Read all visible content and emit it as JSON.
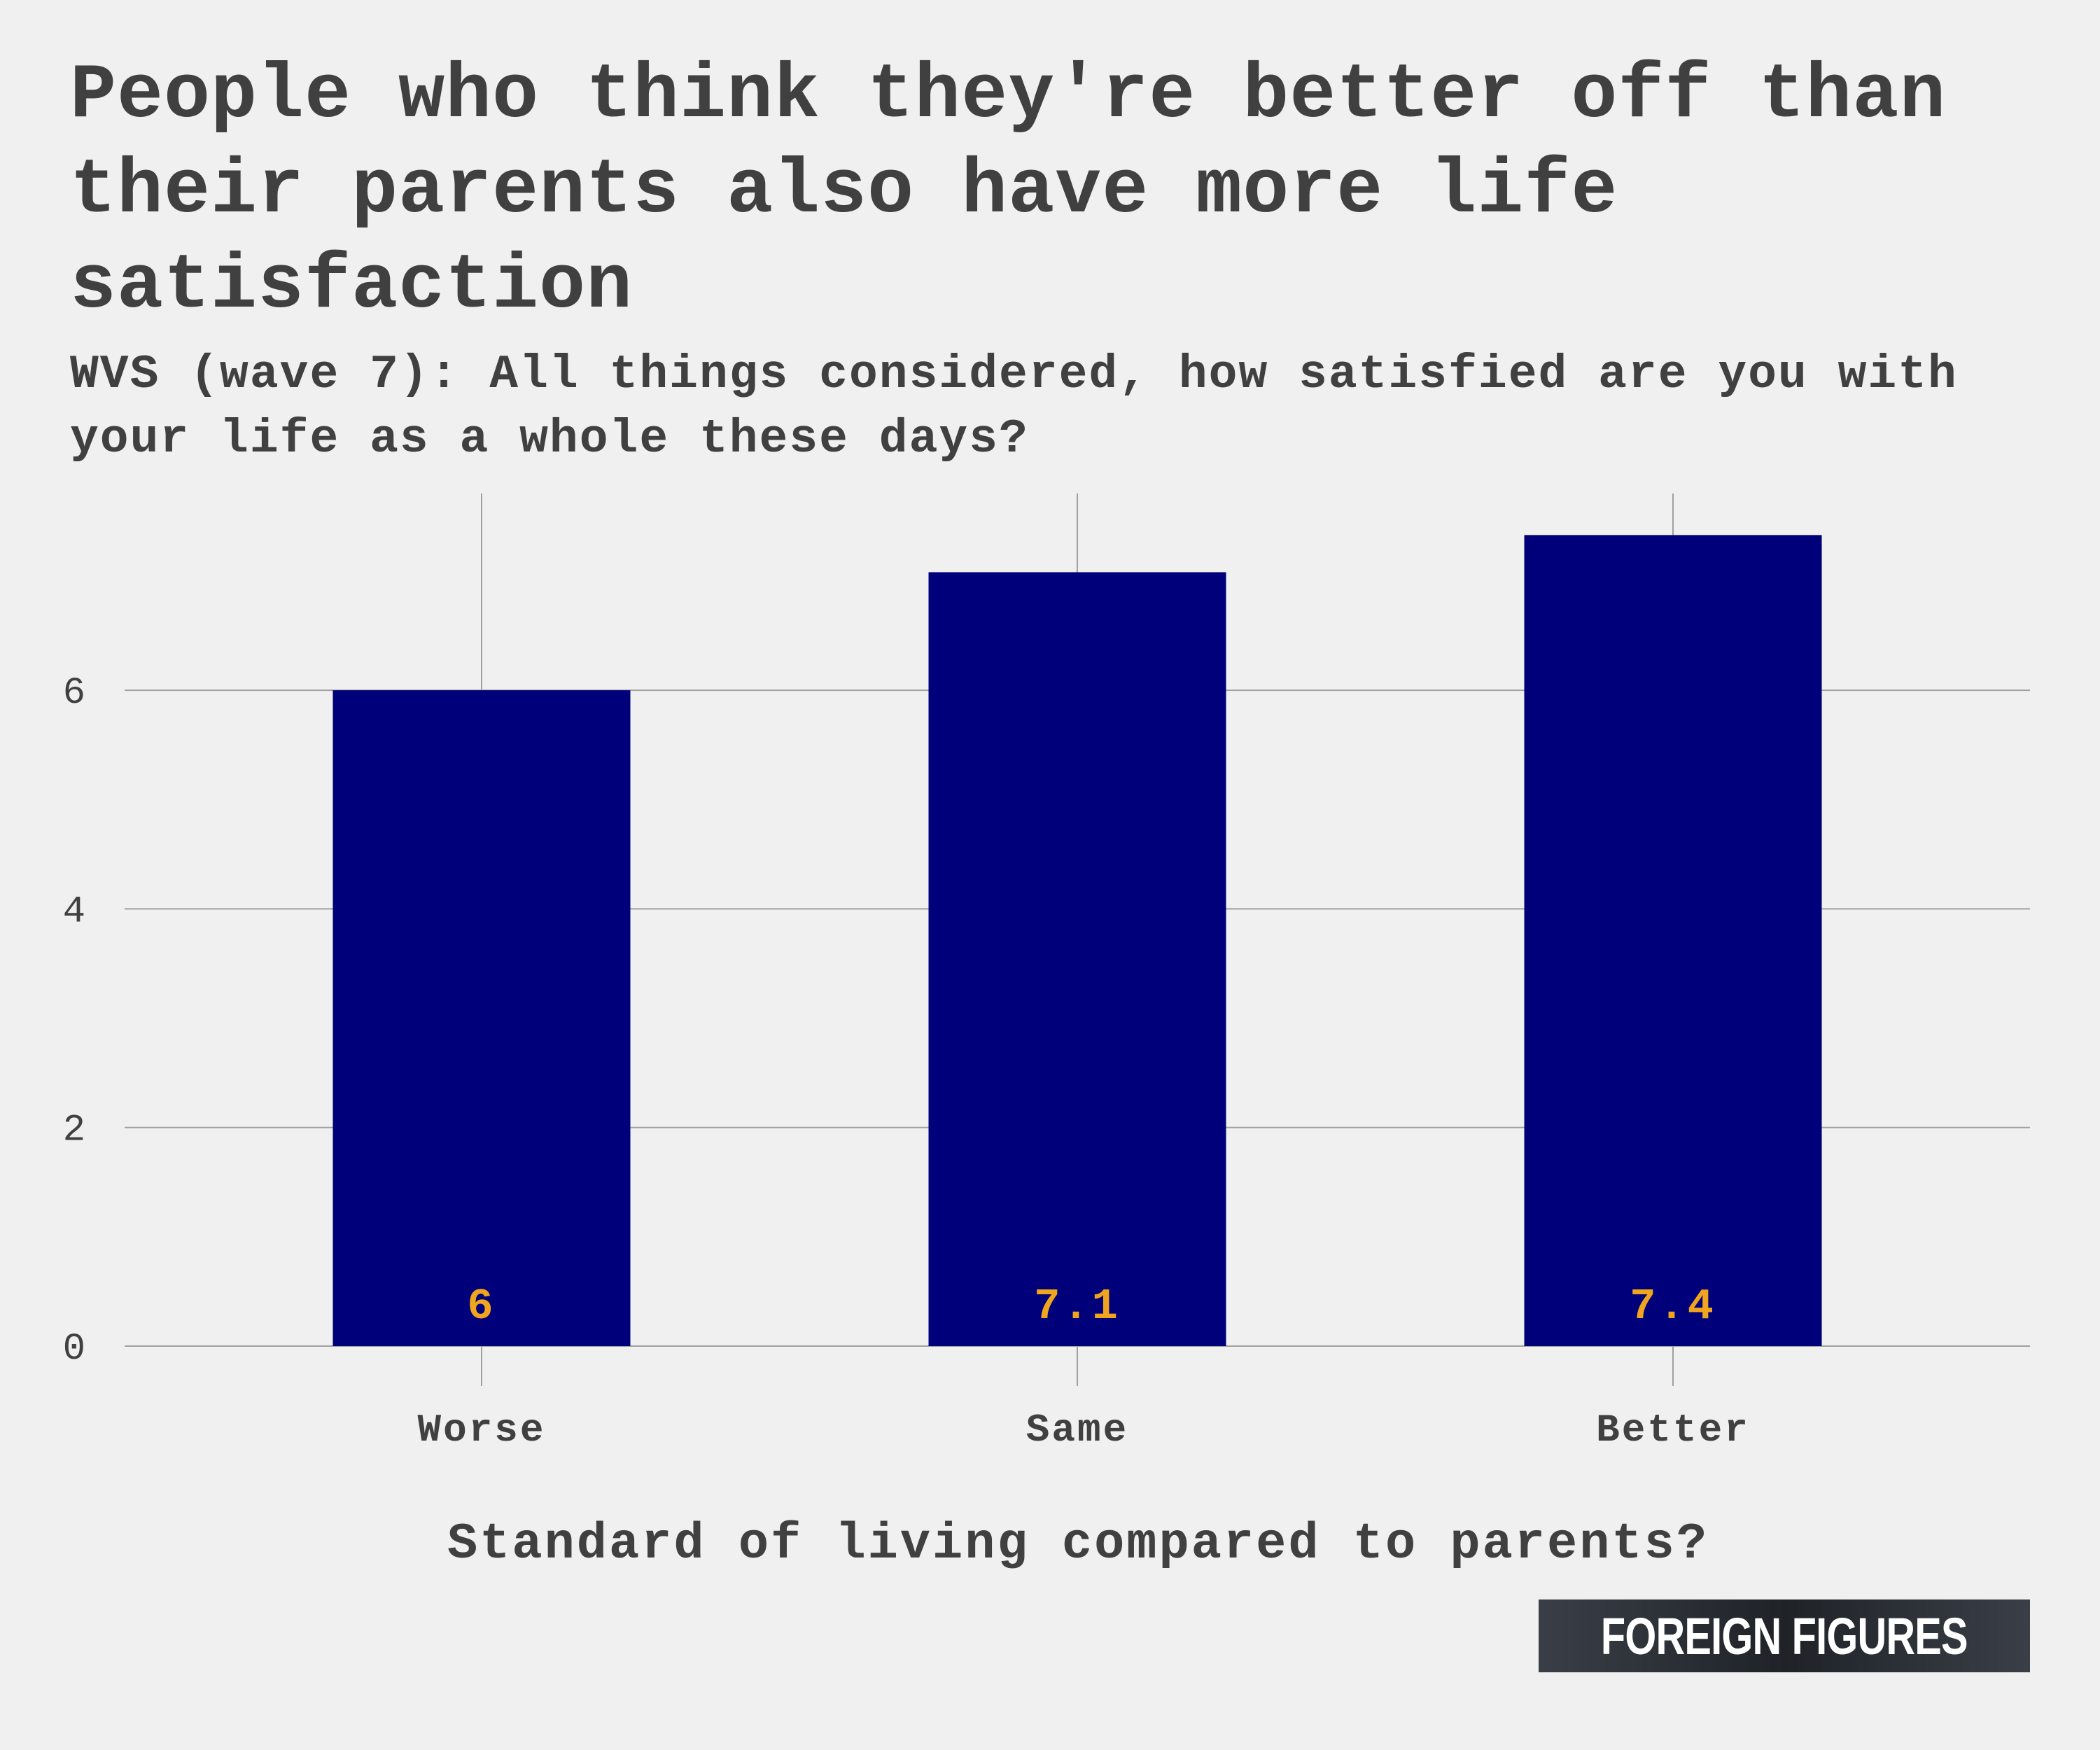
{
  "header": {
    "title": "People who think they're better off than their parents also have more life satisfaction",
    "subtitle": "WVS (wave 7): All things considered, how satisfied are you with your life as a whole these days?"
  },
  "brand": {
    "label": "FOREIGN FIGURES"
  },
  "colors": {
    "bar": "#00007a",
    "data_label": "#f0a51e",
    "grid": "#a0a0a0",
    "background": "#f0f0f0",
    "text": "#404040"
  },
  "chart_data": {
    "type": "bar",
    "title": "People who think they're better off than their parents also have more life satisfaction",
    "subtitle": "WVS (wave 7): All things considered, how satisfied are you with your life as a whole these days?",
    "categories": [
      "Worse",
      "Same",
      "Better"
    ],
    "values": [
      6.0,
      7.08,
      7.42
    ],
    "data_labels": [
      "6",
      "7.1",
      "7.4"
    ],
    "xlabel": "Standard of living compared to parents?",
    "ylabel": "",
    "ylim": [
      0,
      7.8
    ],
    "yticks": [
      0,
      2,
      4,
      6
    ],
    "grid": true,
    "legend": "none"
  }
}
